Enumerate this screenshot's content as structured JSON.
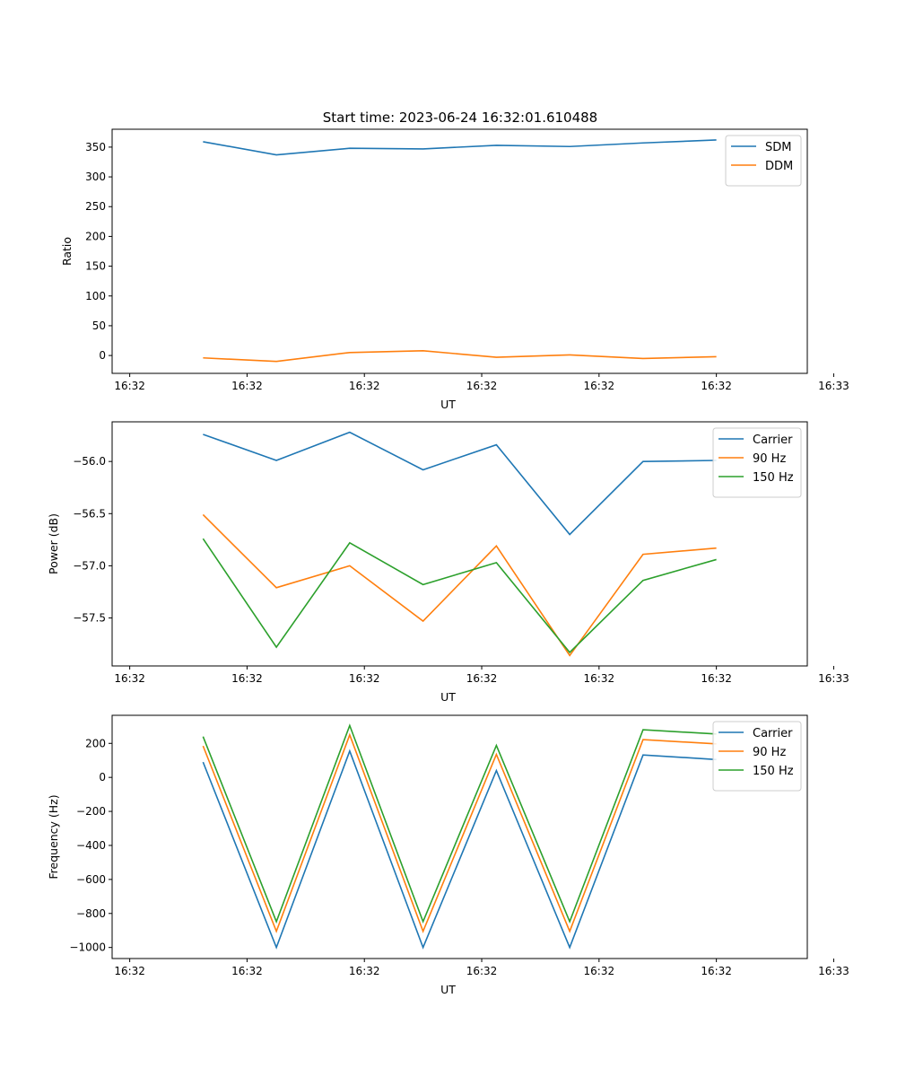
{
  "figure": {
    "title": "Start time: 2023-06-24 16:32:01.610488"
  },
  "chart_data": [
    {
      "type": "line",
      "id": "ratio",
      "title": "Start time: 2023-06-24 16:32:01.610488",
      "xlabel": "UT",
      "ylabel": "Ratio",
      "x": [
        0.5,
        1.0,
        1.5,
        2.0,
        2.5,
        3.0,
        3.5,
        4.0
      ],
      "xlim": [
        -0.12,
        4.62
      ],
      "xticks": [
        0,
        0.8,
        1.6,
        2.4,
        3.2,
        4.0,
        4.8
      ],
      "xticklabels": [
        "16:32",
        "16:32",
        "16:32",
        "16:32",
        "16:32",
        "16:32",
        "16:33"
      ],
      "ylim": [
        -30,
        380
      ],
      "yticks": [
        0,
        50,
        100,
        150,
        200,
        250,
        300,
        350
      ],
      "legend": "top-right",
      "grid": false,
      "series": [
        {
          "name": "SDM",
          "color": "#1f77b4",
          "values": [
            359,
            337,
            348,
            347,
            353,
            351,
            357,
            362
          ]
        },
        {
          "name": "DDM",
          "color": "#ff7f0e",
          "values": [
            -4,
            -10,
            5,
            8,
            -3,
            1,
            -5,
            -2
          ]
        }
      ]
    },
    {
      "type": "line",
      "id": "power",
      "title": "",
      "xlabel": "UT",
      "ylabel": "Power (dB)",
      "x": [
        0.5,
        1.0,
        1.5,
        2.0,
        2.5,
        3.0,
        3.5,
        4.0
      ],
      "xlim": [
        -0.12,
        4.62
      ],
      "xticks": [
        0,
        0.8,
        1.6,
        2.4,
        3.2,
        4.0,
        4.8
      ],
      "xticklabels": [
        "16:32",
        "16:32",
        "16:32",
        "16:32",
        "16:32",
        "16:32",
        "16:33"
      ],
      "ylim": [
        -57.96,
        -55.62
      ],
      "yticks": [
        -56.0,
        -56.5,
        -57.0,
        -57.5
      ],
      "yticklabels": [
        "−56.0",
        "−56.5",
        "−57.0",
        "−57.5"
      ],
      "legend": "top-right",
      "grid": false,
      "series": [
        {
          "name": "Carrier",
          "color": "#1f77b4",
          "values": [
            -55.74,
            -55.99,
            -55.72,
            -56.08,
            -55.84,
            -56.7,
            -56.0,
            -55.99
          ]
        },
        {
          "name": "90 Hz",
          "color": "#ff7f0e",
          "values": [
            -56.51,
            -57.21,
            -57.0,
            -57.53,
            -56.81,
            -57.86,
            -56.89,
            -56.83
          ]
        },
        {
          "name": "150 Hz",
          "color": "#2ca02c",
          "values": [
            -56.74,
            -57.78,
            -56.78,
            -57.18,
            -56.97,
            -57.83,
            -57.14,
            -56.94
          ]
        }
      ]
    },
    {
      "type": "line",
      "id": "frequency",
      "title": "",
      "xlabel": "UT",
      "ylabel": "Frequency (Hz)",
      "x": [
        0.5,
        1.0,
        1.5,
        2.0,
        2.5,
        3.0,
        3.5,
        4.0
      ],
      "xlim": [
        -0.12,
        4.62
      ],
      "xticks": [
        0,
        0.8,
        1.6,
        2.4,
        3.2,
        4.0,
        4.8
      ],
      "xticklabels": [
        "16:32",
        "16:32",
        "16:32",
        "16:32",
        "16:32",
        "16:32",
        "16:33"
      ],
      "ylim": [
        -1065,
        365
      ],
      "yticks": [
        200,
        0,
        -200,
        -400,
        -600,
        -800,
        -1000
      ],
      "yticklabels": [
        "200",
        "0",
        "−200",
        "−400",
        "−600",
        "−800",
        "−1000"
      ],
      "legend": "top-right",
      "grid": false,
      "series": [
        {
          "name": "Carrier",
          "color": "#1f77b4",
          "values": [
            90,
            -1000,
            155,
            -1000,
            40,
            -1000,
            132,
            105
          ]
        },
        {
          "name": "90 Hz",
          "color": "#ff7f0e",
          "values": [
            185,
            -905,
            250,
            -905,
            135,
            -905,
            222,
            197
          ]
        },
        {
          "name": "150 Hz",
          "color": "#2ca02c",
          "values": [
            240,
            -848,
            305,
            -848,
            188,
            -848,
            280,
            255
          ]
        }
      ]
    }
  ]
}
